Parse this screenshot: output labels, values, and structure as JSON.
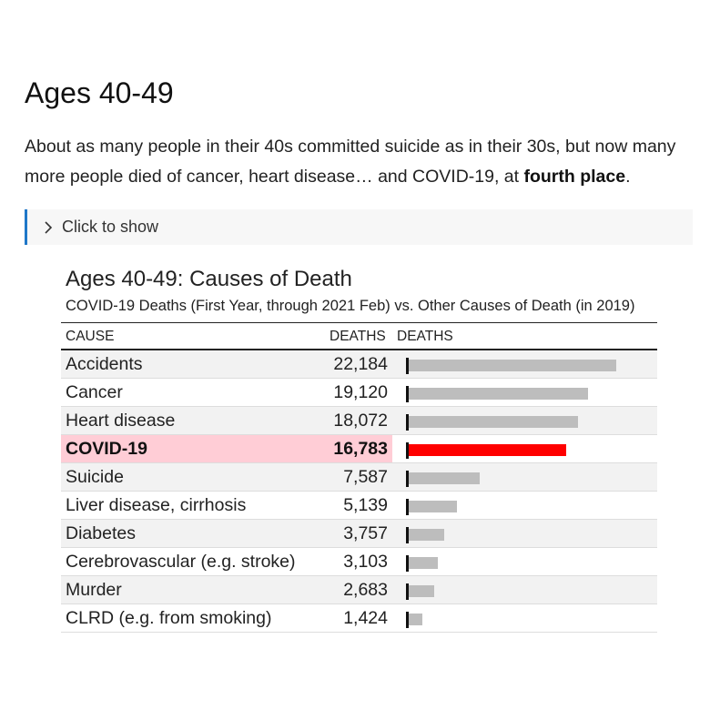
{
  "page": {
    "heading": "Ages 40-49",
    "intro_text": "About as many people in their 40s committed suicide as in their 30s, but now many more people died of cancer, heart disease… and COVID-19, at ",
    "intro_bold": "fourth place",
    "intro_end": ".",
    "disclosure_label": "Click to show",
    "disclosure_icon": "chevron-right-icon"
  },
  "colors": {
    "accent_border": "#1f77c8",
    "bar_default": "#bdbdbd",
    "bar_highlight": "#ff0000",
    "row_highlight": "#ffcdd6"
  },
  "chart_data": {
    "type": "bar",
    "orientation": "horizontal",
    "title": "Ages 40-49: Causes of Death",
    "subtitle": "COVID-19 Deaths (First Year, through 2021 Feb) vs. Other Causes of Death (in 2019)",
    "columns": [
      "CAUSE",
      "DEATHS",
      "DEATHS"
    ],
    "categories": [
      "Accidents",
      "Cancer",
      "Heart disease",
      "COVID-19",
      "Suicide",
      "Liver disease, cirrhosis",
      "Diabetes",
      "Cerebrovascular (e.g. stroke)",
      "Murder",
      "CLRD (e.g. from smoking)"
    ],
    "values": [
      22184,
      19120,
      18072,
      16783,
      7587,
      5139,
      3757,
      3103,
      2683,
      1424
    ],
    "value_labels": [
      "22,184",
      "19,120",
      "18,072",
      "16,783",
      "7,587",
      "5,139",
      "3,757",
      "3,103",
      "2,683",
      "1,424"
    ],
    "highlight_category": "COVID-19",
    "xlim": [
      0,
      22184
    ]
  }
}
